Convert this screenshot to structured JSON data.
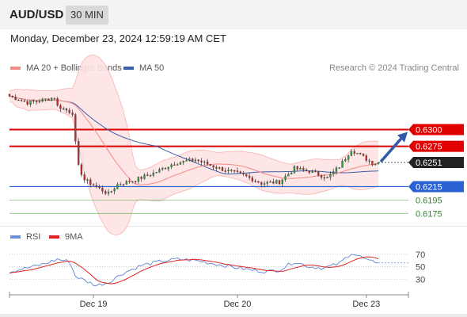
{
  "header": {
    "symbol": "AUD/USD",
    "interval": "30 MIN"
  },
  "timestamp": "Monday, December 23, 2024 12:59:19 AM CET",
  "legend": {
    "ma20_label": "MA 20 + Bollinger Bands",
    "ma20_color": "#f48a86",
    "ma50_label": "MA 50",
    "ma50_color": "#3d5fa8",
    "credit": "Research © 2024 Trading Central"
  },
  "rsi_legend": {
    "rsi_label": "RSI",
    "rsi_color": "#6a8fd8",
    "ma_label": "9MA",
    "ma_color": "#e02020"
  },
  "chart_data": [
    {
      "type": "candlestick",
      "ylim": [
        0.616,
        0.6375
      ],
      "levels": [
        {
          "value": 0.63,
          "label": "0.6300",
          "kind": "resistance",
          "color": "#e00000"
        },
        {
          "value": 0.6275,
          "label": "0.6275",
          "kind": "resistance",
          "color": "#e00000"
        },
        {
          "value": 0.6251,
          "label": "0.6251",
          "kind": "current",
          "color": "#222222"
        },
        {
          "value": 0.6215,
          "label": "0.6215",
          "kind": "pivot",
          "color": "#2a62d4"
        },
        {
          "value": 0.6195,
          "label": "0.6195",
          "kind": "support",
          "color": "#2ea02e"
        },
        {
          "value": 0.6175,
          "label": "0.6175",
          "kind": "support",
          "color": "#2ea02e"
        }
      ],
      "x_ticks": [
        {
          "label": "Dec 19",
          "index": 28
        },
        {
          "label": "Dec 20",
          "index": 76
        },
        {
          "label": "Dec 23",
          "index": 119
        }
      ],
      "candles_count": 124,
      "close_anchors": [
        [
          0,
          0.635
        ],
        [
          6,
          0.634
        ],
        [
          12,
          0.6345
        ],
        [
          15,
          0.6348
        ],
        [
          16,
          0.6335
        ],
        [
          21,
          0.6325
        ],
        [
          22,
          0.628
        ],
        [
          23,
          0.6245
        ],
        [
          25,
          0.6225
        ],
        [
          30,
          0.6212
        ],
        [
          33,
          0.6204
        ],
        [
          36,
          0.6218
        ],
        [
          42,
          0.6225
        ],
        [
          48,
          0.6235
        ],
        [
          55,
          0.625
        ],
        [
          62,
          0.6255
        ],
        [
          70,
          0.6242
        ],
        [
          78,
          0.6232
        ],
        [
          84,
          0.622
        ],
        [
          90,
          0.6222
        ],
        [
          95,
          0.6242
        ],
        [
          100,
          0.6238
        ],
        [
          106,
          0.6228
        ],
        [
          110,
          0.6245
        ],
        [
          114,
          0.627
        ],
        [
          117,
          0.6262
        ],
        [
          121,
          0.625
        ],
        [
          123,
          0.6251
        ]
      ],
      "projection": {
        "from": 0.6251,
        "to": 0.63
      }
    },
    {
      "type": "line",
      "name": "RSI",
      "ylim": [
        10,
        90
      ],
      "y_ticks": [
        70,
        50,
        30
      ],
      "rsi_anchors": [
        [
          0,
          42
        ],
        [
          6,
          48
        ],
        [
          12,
          55
        ],
        [
          16,
          62
        ],
        [
          20,
          58
        ],
        [
          22,
          35
        ],
        [
          25,
          28
        ],
        [
          29,
          20
        ],
        [
          33,
          25
        ],
        [
          38,
          40
        ],
        [
          44,
          52
        ],
        [
          50,
          58
        ],
        [
          56,
          62
        ],
        [
          62,
          60
        ],
        [
          68,
          55
        ],
        [
          74,
          50
        ],
        [
          80,
          45
        ],
        [
          86,
          42
        ],
        [
          90,
          45
        ],
        [
          95,
          58
        ],
        [
          100,
          50
        ],
        [
          105,
          48
        ],
        [
          110,
          55
        ],
        [
          114,
          72
        ],
        [
          117,
          66
        ],
        [
          120,
          58
        ],
        [
          123,
          58
        ]
      ]
    }
  ]
}
